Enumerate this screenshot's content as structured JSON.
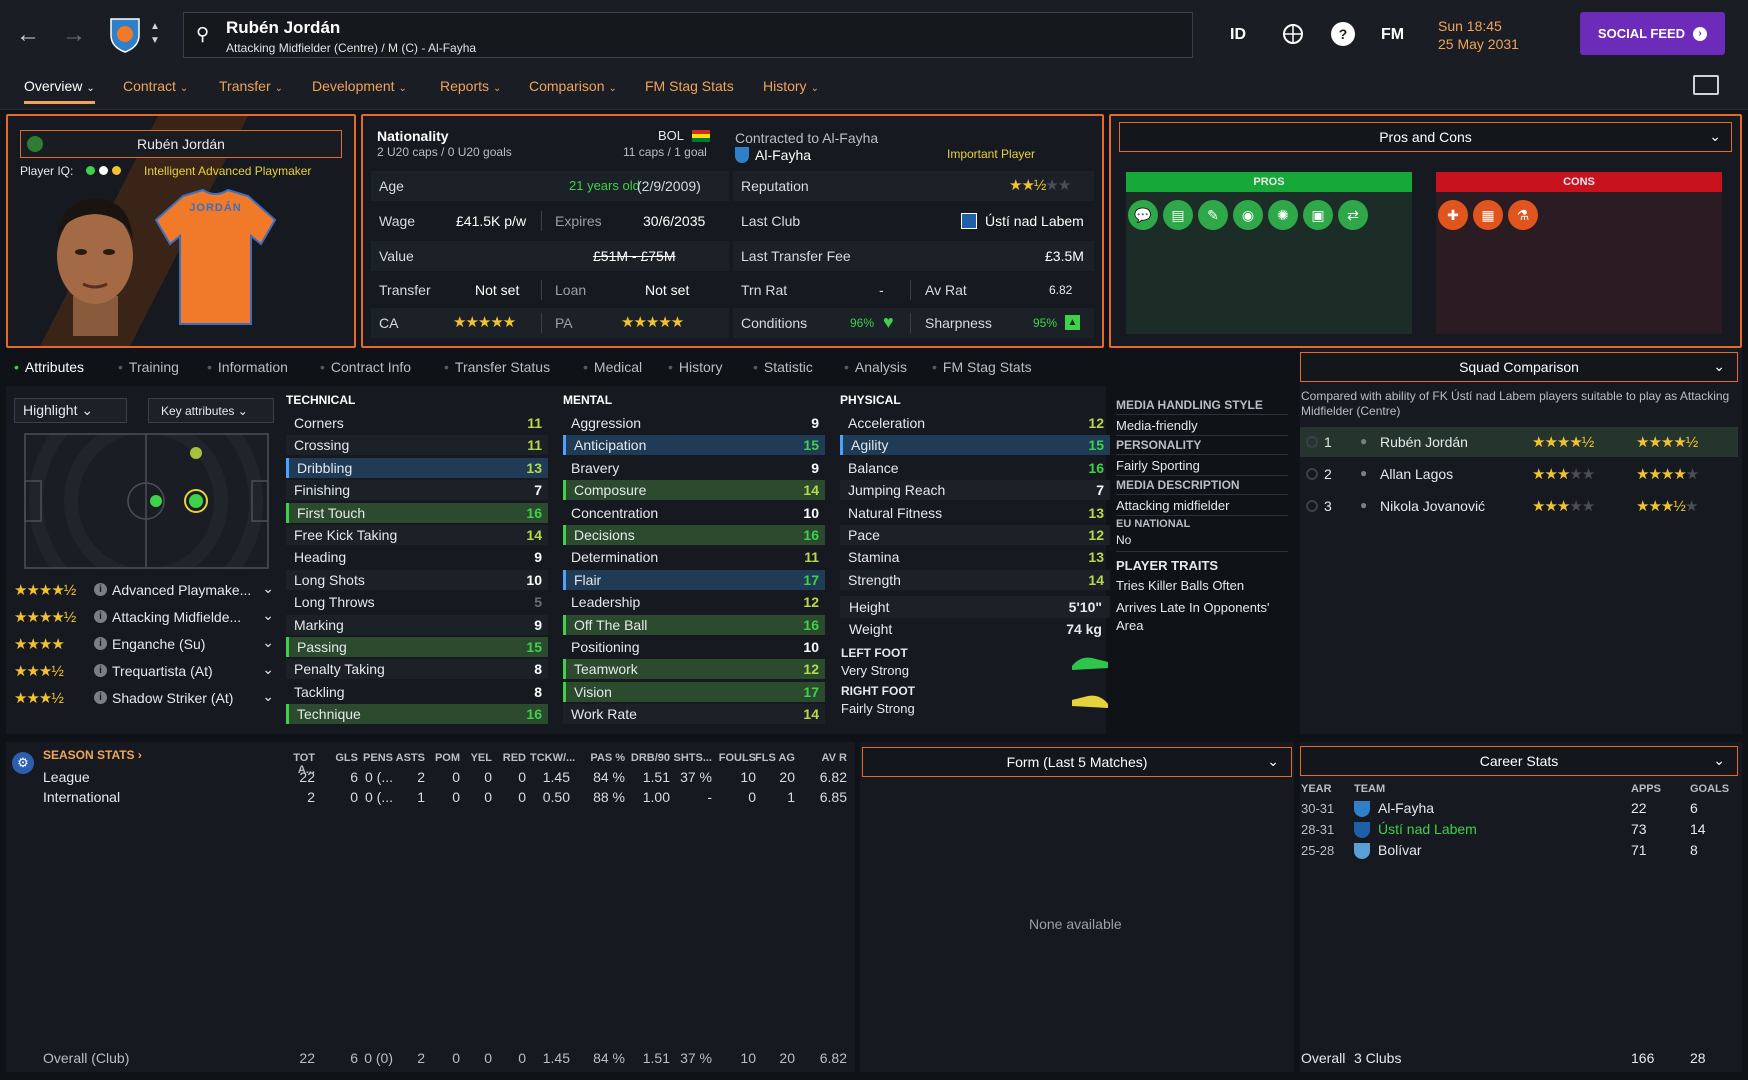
{
  "header": {
    "player_name": "Rubén Jordán",
    "player_sub": "Attacking Midfielder (Centre) / M (C) - Al-Fayha",
    "btn_id": "ID",
    "btn_fm": "FM",
    "date_line1": "Sun 18:45",
    "date_line2": "25 May 2031",
    "social_feed": "SOCIAL FEED"
  },
  "tabs": [
    "Overview",
    "Contract",
    "Transfer",
    "Development",
    "Reports",
    "Comparison",
    "FM Stag Stats",
    "History"
  ],
  "profile": {
    "name": "Rubén Jordán",
    "player_iq_label": "Player IQ:",
    "iq_text": "Intelligent Advanced Playmaker",
    "shirt_name": "JORDÁN"
  },
  "info": {
    "nationality_label": "Nationality",
    "nationality_code": "BOL",
    "u20_caps": "2 U20 caps / 0 U20 goals",
    "caps": "11 caps / 1 goal",
    "age_label": "Age",
    "age_value": "21 years old",
    "dob": "(2/9/2009)",
    "wage_label": "Wage",
    "wage_value": "£41.5K p/w",
    "expires_label": "Expires",
    "expires_value": "30/6/2035",
    "value_label": "Value",
    "value_value": "£51M - £75M",
    "transfer_label": "Transfer",
    "transfer_value": "Not set",
    "loan_label": "Loan",
    "loan_value": "Not set",
    "ca_label": "CA",
    "pa_label": "PA",
    "contracted_label": "Contracted to Al-Fayha",
    "club": "Al-Fayha",
    "status": "Important Player",
    "reputation_label": "Reputation",
    "last_club_label": "Last Club",
    "last_club": "Ústí nad Labem",
    "last_fee_label": "Last Transfer Fee",
    "last_fee": "£3.5M",
    "trn_rat_label": "Trn Rat",
    "trn_rat": "-",
    "av_rat_label": "Av Rat",
    "av_rat": "6.82",
    "conditions_label": "Conditions",
    "conditions": "96%",
    "sharpness_label": "Sharpness",
    "sharpness": "95%"
  },
  "pros_cons": {
    "title": "Pros and Cons",
    "pros_label": "PROS",
    "cons_label": "CONS",
    "pros_icons": [
      "speech-icon",
      "document-icon",
      "pencil-icon",
      "eye-icon",
      "brain-icon",
      "clipboard-icon",
      "handshake-icon"
    ],
    "cons_icons": [
      "medical-cross-icon",
      "barrier-icon",
      "flask-icon"
    ],
    "pros_color": "#17a83a",
    "cons_color": "#c8131e"
  },
  "subtabs": [
    "Attributes",
    "Training",
    "Information",
    "Contract Info",
    "Transfer Status",
    "Medical",
    "History",
    "Statistic",
    "Analysis",
    "FM Stag Stats"
  ],
  "controls": {
    "highlight": "Highlight",
    "key_attributes": "Key attributes"
  },
  "roles": [
    {
      "name": "Advanced Playmake...",
      "stars": 4.5
    },
    {
      "name": "Attacking Midfielde...",
      "stars": 4.5
    },
    {
      "name": "Enganche (Su)",
      "stars": 4
    },
    {
      "name": "Trequartista (At)",
      "stars": 3.5
    },
    {
      "name": "Shadow Striker (At)",
      "stars": 3.5
    }
  ],
  "technical": {
    "title": "TECHNICAL",
    "items": [
      {
        "n": "Corners",
        "v": "11"
      },
      {
        "n": "Crossing",
        "v": "11"
      },
      {
        "n": "Dribbling",
        "v": "13"
      },
      {
        "n": "Finishing",
        "v": "7"
      },
      {
        "n": "First Touch",
        "v": "16"
      },
      {
        "n": "Free Kick Taking",
        "v": "14"
      },
      {
        "n": "Heading",
        "v": "9"
      },
      {
        "n": "Long Shots",
        "v": "10"
      },
      {
        "n": "Long Throws",
        "v": "5"
      },
      {
        "n": "Marking",
        "v": "9"
      },
      {
        "n": "Passing",
        "v": "15"
      },
      {
        "n": "Penalty Taking",
        "v": "8"
      },
      {
        "n": "Tackling",
        "v": "8"
      },
      {
        "n": "Technique",
        "v": "16"
      }
    ]
  },
  "mental": {
    "title": "MENTAL",
    "items": [
      {
        "n": "Aggression",
        "v": "9"
      },
      {
        "n": "Anticipation",
        "v": "15"
      },
      {
        "n": "Bravery",
        "v": "9"
      },
      {
        "n": "Composure",
        "v": "14"
      },
      {
        "n": "Concentration",
        "v": "10"
      },
      {
        "n": "Decisions",
        "v": "16"
      },
      {
        "n": "Determination",
        "v": "11"
      },
      {
        "n": "Flair",
        "v": "17"
      },
      {
        "n": "Leadership",
        "v": "12"
      },
      {
        "n": "Off The Ball",
        "v": "16"
      },
      {
        "n": "Positioning",
        "v": "10"
      },
      {
        "n": "Teamwork",
        "v": "12"
      },
      {
        "n": "Vision",
        "v": "17"
      },
      {
        "n": "Work Rate",
        "v": "14"
      }
    ]
  },
  "physical": {
    "title": "PHYSICAL",
    "items": [
      {
        "n": "Acceleration",
        "v": "12"
      },
      {
        "n": "Agility",
        "v": "15"
      },
      {
        "n": "Balance",
        "v": "16"
      },
      {
        "n": "Jumping Reach",
        "v": "7"
      },
      {
        "n": "Natural Fitness",
        "v": "13"
      },
      {
        "n": "Pace",
        "v": "12"
      },
      {
        "n": "Stamina",
        "v": "13"
      },
      {
        "n": "Strength",
        "v": "14"
      }
    ],
    "height_label": "Height",
    "height": "5'10\"",
    "weight_label": "Weight",
    "weight": "74 kg",
    "left_foot_label": "LEFT FOOT",
    "left_foot": "Very Strong",
    "right_foot_label": "RIGHT FOOT",
    "right_foot": "Fairly Strong"
  },
  "media": {
    "handling_title": "MEDIA HANDLING STYLE",
    "handling": "Media-friendly",
    "personality_title": "PERSONALITY",
    "personality": "Fairly Sporting",
    "description_title": "MEDIA DESCRIPTION",
    "description": "Attacking midfielder",
    "eu_title": "EU NATIONAL",
    "eu": "No",
    "traits_title": "PLAYER TRAITS",
    "traits": [
      "Tries Killer Balls Often",
      "Arrives Late In Opponents' Area"
    ]
  },
  "squad": {
    "title": "Squad Comparison",
    "desc": "Compared with ability of FK Ústí nad Labem players suitable to play as Attacking Midfielder (Centre)",
    "rows": [
      {
        "rank": "1",
        "name": "Rubén Jordán",
        "ca": 4.5,
        "pa": 4.5
      },
      {
        "rank": "2",
        "name": "Allan Lagos",
        "ca": 3,
        "pa": 4
      },
      {
        "rank": "3",
        "name": "Nikola Jovanović",
        "ca": 3,
        "pa": 3.5
      }
    ]
  },
  "season": {
    "title": "SEASON STATS",
    "headers": [
      "TOT A...",
      "GLS",
      "PENS",
      "ASTS",
      "POM",
      "YEL",
      "RED",
      "TCKW/...",
      "PAS %",
      "DRB/90",
      "SHTS...",
      "FOULS",
      "FLS AG",
      "AV R"
    ],
    "rows": [
      {
        "label": "League",
        "vals": [
          "22",
          "6",
          "0 (...",
          "2",
          "0",
          "0",
          "0",
          "1.45",
          "84 %",
          "1.51",
          "37 %",
          "10",
          "20",
          "6.82"
        ]
      },
      {
        "label": "International",
        "vals": [
          "2",
          "0",
          "0 (...",
          "1",
          "0",
          "0",
          "0",
          "0.50",
          "88 %",
          "1.00",
          "-",
          "0",
          "1",
          "6.85"
        ]
      }
    ],
    "overall": {
      "label": "Overall (Club)",
      "vals": [
        "22",
        "6",
        "0 (0)",
        "2",
        "0",
        "0",
        "0",
        "1.45",
        "84 %",
        "1.51",
        "37 %",
        "10",
        "20",
        "6.82"
      ]
    }
  },
  "form": {
    "title": "Form (Last 5 Matches)",
    "empty": "None available"
  },
  "career": {
    "title": "Career Stats",
    "headers": {
      "year": "YEAR",
      "team": "TEAM",
      "apps": "APPS",
      "goals": "GOALS"
    },
    "rows": [
      {
        "year": "30-31",
        "team": "Al-Fayha",
        "apps": "22",
        "goals": "6"
      },
      {
        "year": "28-31",
        "team": "Ústí nad Labem",
        "apps": "73",
        "goals": "14"
      },
      {
        "year": "25-28",
        "team": "Bolívar",
        "apps": "71",
        "goals": "8"
      }
    ],
    "overall_label": "Overall",
    "overall_clubs": "3 Clubs",
    "overall_apps": "166",
    "overall_goals": "28"
  },
  "colors": {
    "accent": "#f0a45a",
    "border": "#e56a2a",
    "green": "#3fd14a",
    "star": "#f2c232"
  }
}
